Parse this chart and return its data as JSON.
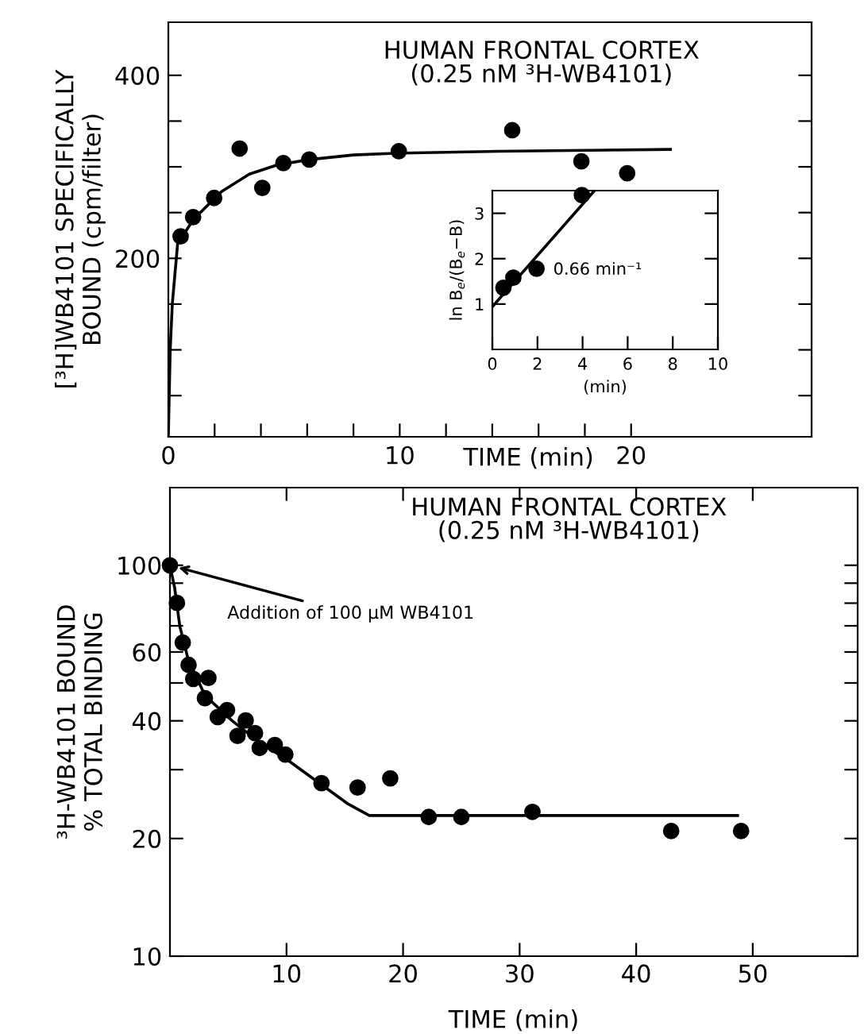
{
  "chart_data": [
    {
      "type": "scatter",
      "title": "HUMAN FRONTAL CORTEX",
      "subtitle": "(0.25 nM ³H-WB4101)",
      "xlabel": "TIME (min)",
      "ylabel": "[³H]WB4101 SPECIFICALLY\nBOUND (cpm/filter)",
      "xlim": [
        0,
        27.8
      ],
      "ylim": [
        5,
        458
      ],
      "xticks": [
        0,
        {
          "value": 2,
          "label": null
        },
        {
          "value": 4,
          "label": null
        },
        {
          "value": 6,
          "label": null
        },
        {
          "value": 8,
          "label": null
        },
        10,
        {
          "value": 12,
          "label": null
        },
        {
          "value": 14,
          "label": null
        },
        {
          "value": 16,
          "label": null
        },
        {
          "value": 18,
          "label": null
        },
        20
      ],
      "yticks": [
        {
          "value": 50,
          "label": null
        },
        {
          "value": 100,
          "label": null
        },
        {
          "value": 150,
          "label": null
        },
        200,
        {
          "value": 250,
          "label": null
        },
        {
          "value": 300,
          "label": null
        },
        {
          "value": 350,
          "label": null
        },
        400
      ],
      "series": [
        {
          "marker": "circle",
          "color": "#000000",
          "x": [
            0.53,
            1.07,
            1.98,
            3.08,
            4.06,
            4.97,
            6.09,
            9.96,
            14.86,
            17.85,
            19.83
          ],
          "values": [
            224,
            245,
            266,
            320,
            277,
            304,
            308,
            317,
            340,
            306,
            293
          ]
        },
        {
          "type": "line",
          "marker": "none",
          "line_style": "solid",
          "color": "#000000",
          "x": [
            0,
            0.08,
            0.17,
            0.4,
            1.1,
            2.3,
            3.5,
            4.7,
            6.1,
            8,
            10,
            14.3,
            21.7
          ],
          "values": [
            7,
            100,
            150,
            216,
            243,
            273,
            292,
            302,
            308,
            313,
            315,
            317,
            319
          ]
        }
      ]
    },
    {
      "type": "scatter",
      "xlabel": "(min)",
      "ylabel": "ln B$_{e}$/(B$_{e}$−B)",
      "xlim": [
        0,
        10
      ],
      "ylim": [
        0,
        3.5
      ],
      "xticks": [
        0,
        2,
        4,
        6,
        8,
        10
      ],
      "yticks": [
        1,
        2,
        3
      ],
      "annotations": [
        "0.66 min⁻¹"
      ],
      "series": [
        {
          "marker": "circle",
          "color": "#000000",
          "x": [
            0.49,
            0.93,
            1.96,
            3.97
          ],
          "values": [
            1.36,
            1.58,
            1.78,
            3.4
          ]
        },
        {
          "type": "line",
          "marker": "none",
          "line_style": "solid",
          "color": "#000000",
          "x": [
            0,
            4.53
          ],
          "values": [
            0.94,
            3.5
          ]
        }
      ]
    },
    {
      "type": "scatter",
      "title": "HUMAN FRONTAL CORTEX",
      "subtitle": "(0.25 nM ³H-WB4101)",
      "xlabel": "TIME (min)",
      "ylabel": "³H-WB4101 BOUND\n% TOTAL BINDING",
      "log": "y",
      "xlim": [
        0,
        59
      ],
      "ylim": [
        10,
        158
      ],
      "xticks": [
        10,
        20,
        30,
        40,
        50
      ],
      "yticks": [
        10,
        20,
        {
          "value": 30,
          "label": null
        },
        40,
        {
          "value": 50,
          "label": null
        },
        60,
        {
          "value": 70,
          "label": null
        },
        {
          "value": 80,
          "label": null
        },
        {
          "value": 90,
          "label": null
        },
        100
      ],
      "annotations": [
        {
          "text": "Addition of 100 µM WB4101",
          "x": 0,
          "y": 100
        }
      ],
      "series": [
        {
          "marker": "circle",
          "color": "#000000",
          "x": [
            0,
            0.6,
            1.1,
            1.6,
            2.0,
            3.3,
            3.0,
            4.1,
            4.9,
            5.8,
            6.5,
            7.3,
            7.7,
            9.0,
            9.9,
            13.0,
            16.1,
            18.9,
            22.2,
            25.0,
            31.1,
            43.0,
            49.0
          ],
          "values": [
            100,
            80.1,
            63.4,
            55.6,
            51.2,
            51.5,
            45.7,
            40.9,
            42.6,
            36.6,
            40.1,
            37.2,
            34.1,
            34.7,
            32.8,
            27.7,
            27.0,
            28.5,
            22.7,
            22.7,
            23.4,
            20.9,
            20.9
          ]
        },
        {
          "type": "line",
          "marker": "none",
          "line_style": "solid",
          "color": "#000000",
          "x": [
            0,
            0.4,
            0.85,
            1.56,
            3.0,
            5.3,
            7.7,
            10,
            12.9,
            15.2,
            17.1,
            48.7
          ],
          "values": [
            100,
            87.7,
            69.8,
            57.5,
            46.5,
            40.1,
            35.2,
            31.9,
            27.6,
            24.6,
            22.9,
            22.9
          ]
        }
      ]
    }
  ]
}
